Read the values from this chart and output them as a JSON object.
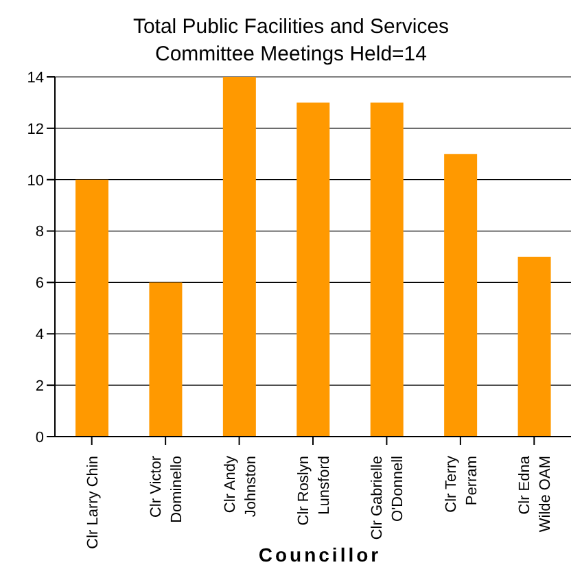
{
  "chart_data": {
    "type": "bar",
    "title": "Total Public Facilities and Services\nCommittee Meetings Held=14",
    "xlabel": "Councillor",
    "categories": [
      "Clr Larry Chin",
      "Clr Victor\nDominello",
      "Clr Andy\nJohnston",
      "Clr Roslyn\nLunsford",
      "Clr Gabrielle\nO'Donnell",
      "Clr Terry\nPerram",
      "Clr Edna\nWilde OAM"
    ],
    "values": [
      10,
      6,
      14,
      13,
      13,
      11,
      7
    ],
    "color": "#ff9900",
    "ylim": [
      0,
      14
    ],
    "yticks": [
      0,
      2,
      4,
      6,
      8,
      10,
      12,
      14
    ],
    "grid": "y"
  }
}
